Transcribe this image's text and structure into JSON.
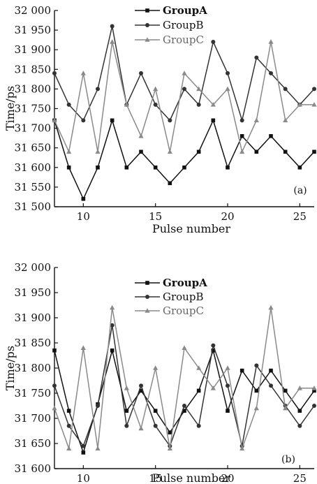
{
  "chart_data": [
    {
      "type": "line",
      "panel_label": "(a)",
      "xlabel": "Pulse number",
      "ylabel": "Time/ps",
      "xlim": [
        8,
        26
      ],
      "ylim": [
        31500,
        32000
      ],
      "xticks": [
        10,
        15,
        20,
        25
      ],
      "yticks": [
        31500,
        31550,
        31600,
        31650,
        31700,
        31750,
        31800,
        31850,
        31900,
        31950,
        32000
      ],
      "ytick_labels": [
        "31 500",
        "31 550",
        "31 600",
        "31 650",
        "31 700",
        "31 750",
        "31 800",
        "31 850",
        "31 900",
        "31 950",
        "32 000"
      ],
      "legend_position": "top-center",
      "x": [
        8,
        9,
        10,
        11,
        12,
        13,
        14,
        15,
        16,
        17,
        18,
        19,
        20,
        21,
        22,
        23,
        24,
        25,
        26
      ],
      "series": [
        {
          "name": "GroupA",
          "marker": "square",
          "color": "#111111",
          "values": [
            31720,
            31600,
            31520,
            31600,
            31720,
            31600,
            31640,
            31600,
            31560,
            31600,
            31640,
            31720,
            31600,
            31680,
            31640,
            31680,
            31640,
            31600,
            31640
          ]
        },
        {
          "name": "GroupB",
          "marker": "circle",
          "color": "#333333",
          "values": [
            31840,
            31760,
            31720,
            31800,
            31960,
            31760,
            31840,
            31760,
            31720,
            31800,
            31760,
            31920,
            31840,
            31720,
            31880,
            31840,
            31800,
            31760,
            31800
          ]
        },
        {
          "name": "GroupC",
          "marker": "triangle",
          "color": "#8a8a8a",
          "values": [
            31720,
            31640,
            31840,
            31640,
            31920,
            31760,
            31680,
            31800,
            31640,
            31840,
            31800,
            31760,
            31800,
            31640,
            31720,
            31920,
            31720,
            31760,
            31760
          ]
        }
      ]
    },
    {
      "type": "line",
      "panel_label": "(b)",
      "xlabel": "Pulse number",
      "ylabel": "Time/ps",
      "xlim": [
        8,
        26
      ],
      "ylim": [
        31600,
        32000
      ],
      "xticks": [
        10,
        15,
        20,
        25
      ],
      "yticks": [
        31600,
        31650,
        31700,
        31750,
        31800,
        31850,
        31900,
        31950,
        32000
      ],
      "ytick_labels": [
        "31 600",
        "31 650",
        "31 700",
        "31 750",
        "31 800",
        "31 850",
        "31 900",
        "31 950",
        "32 000"
      ],
      "legend_position": "top-center",
      "x": [
        8,
        9,
        10,
        11,
        12,
        13,
        14,
        15,
        16,
        17,
        18,
        19,
        20,
        21,
        22,
        23,
        24,
        25,
        26
      ],
      "series": [
        {
          "name": "GroupA",
          "marker": "square",
          "color": "#111111",
          "values": [
            31835,
            31715,
            31632,
            31728,
            31835,
            31715,
            31755,
            31715,
            31672,
            31715,
            31755,
            31835,
            31715,
            31795,
            31755,
            31795,
            31755,
            31715,
            31755
          ]
        },
        {
          "name": "GroupB",
          "marker": "circle",
          "color": "#333333",
          "values": [
            31765,
            31685,
            31645,
            31725,
            31885,
            31685,
            31765,
            31685,
            31645,
            31725,
            31685,
            31845,
            31765,
            31645,
            31805,
            31765,
            31725,
            31685,
            31725
          ]
        },
        {
          "name": "GroupC",
          "marker": "triangle",
          "color": "#8a8a8a",
          "values": [
            31720,
            31640,
            31840,
            31640,
            31920,
            31760,
            31680,
            31800,
            31640,
            31840,
            31800,
            31760,
            31800,
            31640,
            31720,
            31920,
            31720,
            31760,
            31760
          ]
        }
      ]
    }
  ]
}
